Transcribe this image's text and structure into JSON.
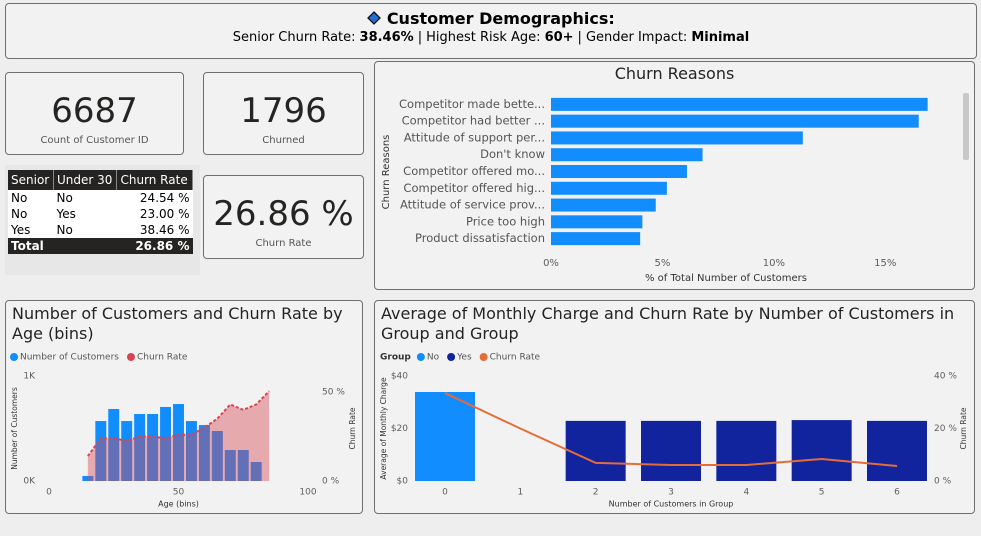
{
  "header": {
    "title": "Customer Demographics:",
    "separator": "|",
    "stats": [
      {
        "label": "Senior Churn Rate:",
        "value": "38.46%"
      },
      {
        "label": "Highest Risk Age:",
        "value": "60+"
      },
      {
        "label": "Gender Impact:",
        "value": "Minimal"
      }
    ]
  },
  "kpis": [
    {
      "value": "6687",
      "label": "Count of Customer ID"
    },
    {
      "value": "1796",
      "label": "Churned"
    },
    {
      "value": "26.86 %",
      "label": "Churn Rate"
    }
  ],
  "table": {
    "columns": [
      "Senior",
      "Under 30",
      "Churn Rate"
    ],
    "rows": [
      [
        "No",
        "No",
        "24.54 %"
      ],
      [
        "No",
        "Yes",
        "23.00 %"
      ],
      [
        "Yes",
        "No",
        "38.46 %"
      ]
    ],
    "total": {
      "label": "Total",
      "value": "26.86 %"
    }
  },
  "chart_data": [
    {
      "type": "bar",
      "orientation": "horizontal",
      "title": "Churn Reasons",
      "y_label": "Churn Reasons",
      "x_label": "% of Total Number of Customers",
      "categories": [
        "Competitor made bette...",
        "Competitor had better ...",
        "Attitude of support per...",
        "Don't know",
        "Competitor offered mo...",
        "Competitor offered hig...",
        "Attitude of service prov...",
        "Price too high",
        "Product dissatisfaction"
      ],
      "values": [
        16.9,
        16.5,
        11.3,
        6.8,
        6.1,
        5.2,
        4.7,
        4.1,
        4.0
      ],
      "color": "#118dff",
      "xlim": [
        0,
        17.5
      ],
      "xticks": [
        {
          "value": 0,
          "label": "0%"
        },
        {
          "value": 5,
          "label": "5%"
        },
        {
          "value": 10,
          "label": "10%"
        },
        {
          "value": 15,
          "label": "15%"
        }
      ]
    },
    {
      "type": "combo",
      "title": "Number of Customers and Churn Rate by Age (bins)",
      "x_label": "Age (bins)",
      "y_label": "Number of Customers",
      "y2_label": "Churn Rate",
      "x": [
        15,
        20,
        25,
        30,
        35,
        40,
        45,
        50,
        55,
        60,
        65,
        70,
        75,
        80,
        85
      ],
      "bin_width": 5,
      "series": [
        {
          "name": "Number of Customers",
          "type": "bar",
          "color": "#118dff",
          "values": [
            48,
            571,
            686,
            571,
            638,
            638,
            705,
            733,
            571,
            533,
            476,
            295,
            295,
            181,
            null
          ]
        },
        {
          "name": "Churn Rate",
          "type": "area",
          "axis": "y2",
          "color": "#d64550",
          "values": [
            14,
            24,
            24,
            22.5,
            25,
            25,
            24,
            26,
            26,
            30,
            35,
            43,
            40,
            43,
            50.5
          ]
        }
      ],
      "xlim": [
        0,
        100
      ],
      "xticks": [
        0,
        50,
        100
      ],
      "ylim": [
        0,
        1000
      ],
      "yticks": [
        {
          "value": 0,
          "label": "0K"
        },
        {
          "value": 1000,
          "label": "1K"
        }
      ],
      "y2lim": [
        0,
        59
      ],
      "y2ticks": [
        {
          "value": 0,
          "label": "0 %"
        },
        {
          "value": 50,
          "label": "50 %"
        }
      ]
    },
    {
      "type": "combo",
      "title": "Average of Monthly Charge and Churn Rate by Number of Customers in Group and Group",
      "legend_title": "Group",
      "x_label": "Number of Customers in Group",
      "y_label": "Average of Monthly Charge",
      "y2_label": "Churn Rate",
      "categories": [
        "0",
        "1",
        "2",
        "3",
        "4",
        "5",
        "6"
      ],
      "series": [
        {
          "name": "No",
          "type": "bar",
          "color": "#118dff",
          "values": [
            33.9,
            null,
            null,
            null,
            null,
            null,
            null
          ]
        },
        {
          "name": "Yes",
          "type": "bar",
          "color": "#12239e",
          "values": [
            null,
            null,
            22.9,
            22.9,
            22.9,
            23.2,
            22.9
          ]
        },
        {
          "name": "Churn Rate",
          "type": "line",
          "axis": "y2",
          "color": "#e66c37",
          "values": [
            33.5,
            20,
            6.9,
            6.1,
            6.1,
            8.4,
            5.7
          ]
        }
      ],
      "ylim": [
        0,
        40
      ],
      "yticks": [
        {
          "value": 0,
          "label": "$0"
        },
        {
          "value": 20,
          "label": "$20"
        },
        {
          "value": 40,
          "label": "$40"
        }
      ],
      "y2lim": [
        0,
        40
      ],
      "y2ticks": [
        {
          "value": 0,
          "label": "0 %"
        },
        {
          "value": 20,
          "label": "20 %"
        },
        {
          "value": 40,
          "label": "40 %"
        }
      ]
    }
  ]
}
